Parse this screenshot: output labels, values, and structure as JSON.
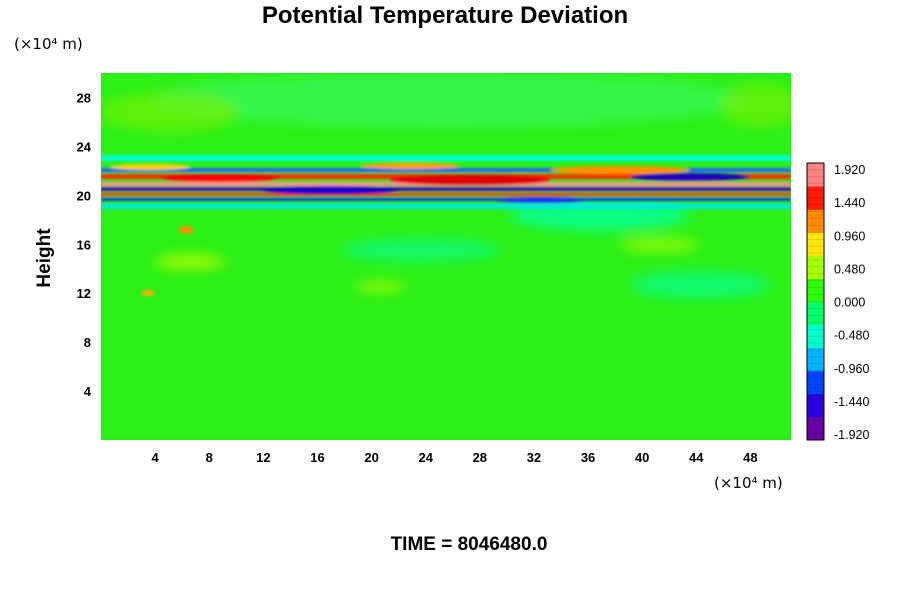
{
  "chart_data": {
    "type": "heatmap",
    "title": "Potential Temperature Deviation",
    "ylabel": "Height",
    "x_unit_label": "(×10⁴ m)",
    "y_unit_label": "(×10⁴ m)",
    "xlim": [
      0,
      51
    ],
    "ylim": [
      0,
      30
    ],
    "x_ticks": [
      4,
      8,
      12,
      16,
      20,
      24,
      28,
      32,
      36,
      40,
      44,
      48
    ],
    "y_ticks": [
      4,
      8,
      12,
      16,
      20,
      24,
      28
    ],
    "colorbar": {
      "min": -1.92,
      "max": 1.92,
      "labels": [
        "1.920",
        "1.440",
        "0.960",
        "0.480",
        "0.000",
        "-0.480",
        "-0.960",
        "-1.440",
        "-1.920"
      ],
      "colors": [
        "#6a00a8",
        "#2a00e0",
        "#0044ff",
        "#00b4ff",
        "#00ffcc",
        "#00ff6a",
        "#2cff00",
        "#a8ff00",
        "#ffe600",
        "#ff8c00",
        "#ff1a00",
        "#ff8080"
      ]
    },
    "footer": "TIME = 8046480.0"
  }
}
